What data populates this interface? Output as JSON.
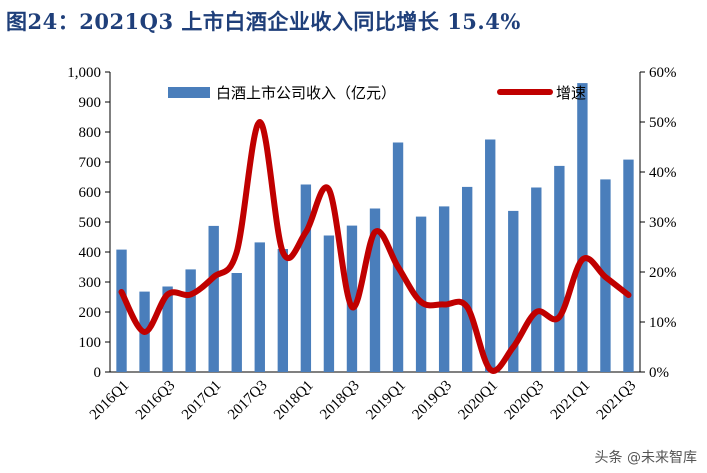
{
  "title": "图24：2021Q3 上市白酒企业收入同比增长 15.4%",
  "watermark": "头条 @未来智库",
  "chart_data": {
    "type": "bar+line",
    "categories": [
      "2016Q1",
      "2016Q2",
      "2016Q3",
      "2016Q4",
      "2017Q1",
      "2017Q2",
      "2017Q3",
      "2017Q4",
      "2018Q1",
      "2018Q2",
      "2018Q3",
      "2018Q4",
      "2019Q1",
      "2019Q2",
      "2019Q3",
      "2019Q4",
      "2020Q1",
      "2020Q2",
      "2020Q3",
      "2020Q4",
      "2021Q1",
      "2021Q2",
      "2021Q3"
    ],
    "tick_labels": [
      "2016Q1",
      "2016Q3",
      "2017Q1",
      "2017Q3",
      "2018Q1",
      "2018Q3",
      "2019Q1",
      "2019Q3",
      "2020Q1",
      "2020Q3",
      "2021Q1",
      "2021Q3"
    ],
    "series": [
      {
        "name": "白酒上市公司收入（亿元）",
        "type": "bar",
        "axis": "left",
        "color": "#4a7ebb",
        "values": [
          408,
          268,
          285,
          342,
          487,
          330,
          432,
          410,
          625,
          455,
          488,
          545,
          765,
          518,
          552,
          617,
          775,
          537,
          615,
          687,
          963,
          642,
          708
        ]
      },
      {
        "name": "增速",
        "type": "line",
        "axis": "right",
        "color": "#c00000",
        "values": [
          0.16,
          0.08,
          0.155,
          0.155,
          0.19,
          0.24,
          0.5,
          0.24,
          0.28,
          0.365,
          0.13,
          0.28,
          0.21,
          0.14,
          0.135,
          0.13,
          0.005,
          0.05,
          0.12,
          0.11,
          0.225,
          0.19,
          0.154
        ]
      }
    ],
    "y_left": {
      "min": 0,
      "max": 1000,
      "step": 100,
      "labels": [
        "0",
        "100",
        "200",
        "300",
        "400",
        "500",
        "600",
        "700",
        "800",
        "900",
        "1,000"
      ]
    },
    "y_right": {
      "min": 0,
      "max": 0.6,
      "step": 0.1,
      "labels": [
        "0%",
        "10%",
        "20%",
        "30%",
        "40%",
        "50%",
        "60%"
      ]
    },
    "legend_position": "top-center"
  }
}
